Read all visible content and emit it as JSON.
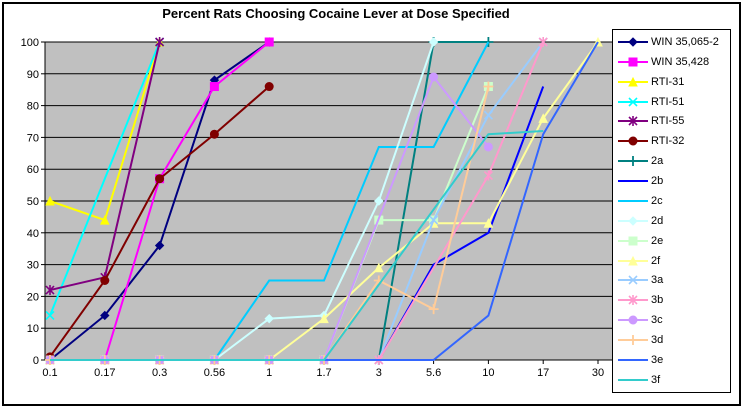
{
  "window": {
    "background": "#FFFFFF",
    "border_color": "#000000"
  },
  "chart_data": {
    "type": "line",
    "title": "Percent Rats Choosing Cocaine Lever at Dose Specified",
    "xlabel": "",
    "ylabel": "",
    "categories": [
      "0.1",
      "0.17",
      "0.3",
      "0.56",
      "1",
      "1.7",
      "3",
      "5.6",
      "10",
      "17",
      "30"
    ],
    "ylim": [
      0,
      100
    ],
    "ytick_step": 10,
    "yticks": [
      0,
      10,
      20,
      30,
      40,
      50,
      60,
      70,
      80,
      90,
      100
    ],
    "grid": "horizontal",
    "plot_bg": "#C0C0C0",
    "gridline_color": "#000000",
    "legend_position": "right",
    "series": [
      {
        "name": "WIN 35,065-2",
        "color": "#000080",
        "marker": "diamond",
        "points": [
          [
            "0.1",
            0
          ],
          [
            "0.17",
            14
          ],
          [
            "0.3",
            36
          ],
          [
            "0.56",
            88
          ],
          [
            "1",
            100
          ]
        ]
      },
      {
        "name": "WIN 35,428",
        "color": "#FF00FF",
        "marker": "square",
        "points": [
          [
            "0.17",
            0
          ],
          [
            "0.3",
            57
          ],
          [
            "0.56",
            86
          ],
          [
            "1",
            100
          ]
        ]
      },
      {
        "name": "RTI-31",
        "color": "#FFFF00",
        "marker": "triangle",
        "points": [
          [
            "0.1",
            50
          ],
          [
            "0.17",
            44
          ],
          [
            "0.3",
            100
          ]
        ]
      },
      {
        "name": "RTI-51",
        "color": "#00FFFF",
        "marker": "x",
        "points": [
          [
            "0.1",
            14
          ],
          [
            "0.3",
            100
          ]
        ]
      },
      {
        "name": "RTI-55",
        "color": "#800080",
        "marker": "star",
        "points": [
          [
            "0.1",
            22
          ],
          [
            "0.17",
            26
          ],
          [
            "0.3",
            100
          ]
        ]
      },
      {
        "name": "RTI-32",
        "color": "#800000",
        "marker": "circle",
        "points": [
          [
            "0.1",
            1
          ],
          [
            "0.17",
            25
          ],
          [
            "0.3",
            57
          ],
          [
            "0.56",
            71
          ],
          [
            "1",
            86
          ]
        ]
      },
      {
        "name": "2a",
        "color": "#008080",
        "marker": "plus",
        "points": [
          [
            "1.7",
            0
          ],
          [
            "3",
            0
          ],
          [
            "5.6",
            100
          ],
          [
            "10",
            100
          ]
        ]
      },
      {
        "name": "2b",
        "color": "#0000FF",
        "marker": "none",
        "points": [
          [
            "1.7",
            0
          ],
          [
            "3",
            0
          ],
          [
            "5.6",
            30
          ],
          [
            "10",
            40
          ],
          [
            "17",
            86
          ]
        ]
      },
      {
        "name": "2c",
        "color": "#00CCFF",
        "marker": "none",
        "points": [
          [
            "0.56",
            0
          ],
          [
            "1",
            25
          ],
          [
            "1.7",
            25
          ],
          [
            "3",
            67
          ],
          [
            "5.6",
            67
          ],
          [
            "10",
            100
          ]
        ]
      },
      {
        "name": "2d",
        "color": "#CCFFFF",
        "marker": "diamond",
        "points": [
          [
            "0.1",
            0
          ],
          [
            "0.17",
            0
          ],
          [
            "0.3",
            0
          ],
          [
            "0.56",
            0
          ],
          [
            "1",
            13
          ],
          [
            "1.7",
            14
          ],
          [
            "3",
            50
          ],
          [
            "5.6",
            100
          ]
        ]
      },
      {
        "name": "2e",
        "color": "#CCFFCC",
        "marker": "square",
        "points": [
          [
            "0.1",
            0
          ],
          [
            "0.17",
            0
          ],
          [
            "0.3",
            0
          ],
          [
            "0.56",
            0
          ],
          [
            "1",
            0
          ],
          [
            "1.7",
            0
          ],
          [
            "3",
            44
          ],
          [
            "5.6",
            44
          ],
          [
            "10",
            86
          ]
        ]
      },
      {
        "name": "2f",
        "color": "#FFFF99",
        "marker": "triangle",
        "points": [
          [
            "0.1",
            0
          ],
          [
            "0.17",
            0
          ],
          [
            "0.3",
            0
          ],
          [
            "0.56",
            0
          ],
          [
            "1",
            0
          ],
          [
            "1.7",
            13
          ],
          [
            "3",
            29
          ],
          [
            "5.6",
            43
          ],
          [
            "10",
            43
          ],
          [
            "17",
            76
          ],
          [
            "30",
            100
          ]
        ]
      },
      {
        "name": "3a",
        "color": "#99CCFF",
        "marker": "x",
        "points": [
          [
            "0.1",
            0
          ],
          [
            "0.17",
            0
          ],
          [
            "0.3",
            0
          ],
          [
            "0.56",
            0
          ],
          [
            "1",
            0
          ],
          [
            "1.7",
            0
          ],
          [
            "3",
            0
          ],
          [
            "5.6",
            44
          ],
          [
            "10",
            77
          ],
          [
            "17",
            100
          ]
        ]
      },
      {
        "name": "3b",
        "color": "#FF99CC",
        "marker": "star",
        "points": [
          [
            "0.1",
            0
          ],
          [
            "0.17",
            0
          ],
          [
            "0.3",
            0
          ],
          [
            "0.56",
            0
          ],
          [
            "1",
            0
          ],
          [
            "1.7",
            0
          ],
          [
            "3",
            0
          ],
          [
            "10",
            58
          ],
          [
            "17",
            100
          ]
        ]
      },
      {
        "name": "3c",
        "color": "#CC99FF",
        "marker": "circle",
        "points": [
          [
            "0.1",
            0
          ],
          [
            "0.17",
            0
          ],
          [
            "0.3",
            0
          ],
          [
            "0.56",
            0
          ],
          [
            "1",
            0
          ],
          [
            "1.7",
            0
          ],
          [
            "5.6",
            89
          ],
          [
            "10",
            67
          ]
        ]
      },
      {
        "name": "3d",
        "color": "#FFCC99",
        "marker": "plus",
        "points": [
          [
            "0.1",
            0
          ],
          [
            "0.17",
            0
          ],
          [
            "0.3",
            0
          ],
          [
            "0.56",
            0
          ],
          [
            "1",
            0
          ],
          [
            "1.7",
            0
          ],
          [
            "3",
            25
          ],
          [
            "5.6",
            16
          ],
          [
            "10",
            86
          ]
        ]
      },
      {
        "name": "3e",
        "color": "#3366FF",
        "marker": "none",
        "points": [
          [
            "0.1",
            0
          ],
          [
            "0.17",
            0
          ],
          [
            "0.3",
            0
          ],
          [
            "0.56",
            0
          ],
          [
            "1",
            0
          ],
          [
            "1.7",
            0
          ],
          [
            "3",
            0
          ],
          [
            "5.6",
            0
          ],
          [
            "10",
            14
          ],
          [
            "17",
            71
          ],
          [
            "30",
            100
          ]
        ]
      },
      {
        "name": "3f",
        "color": "#33CCCC",
        "marker": "none",
        "points": [
          [
            "0.1",
            0
          ],
          [
            "0.17",
            0
          ],
          [
            "0.3",
            0
          ],
          [
            "0.56",
            0
          ],
          [
            "1",
            0
          ],
          [
            "1.7",
            0
          ],
          [
            "10",
            71
          ],
          [
            "17",
            72
          ]
        ]
      }
    ]
  }
}
